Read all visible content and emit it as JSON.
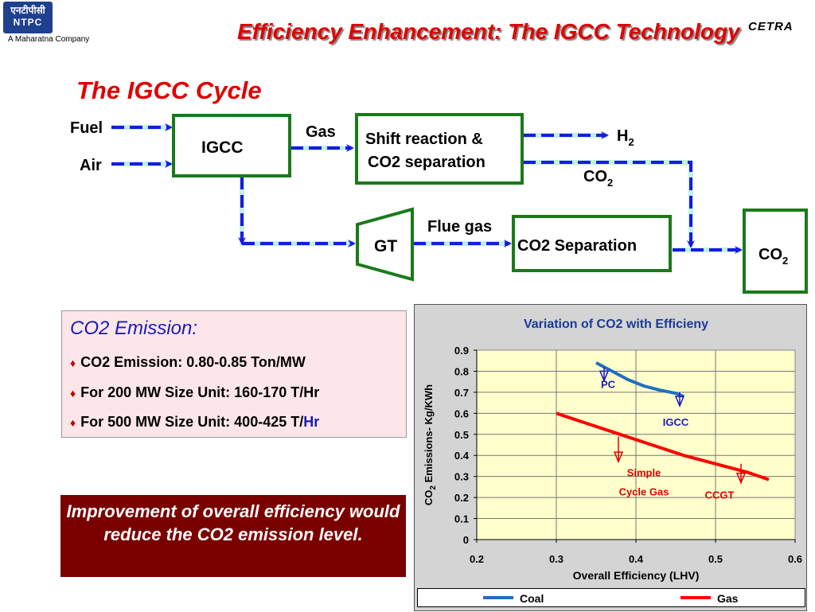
{
  "header": {
    "logo_line1": "एनटीपीसी",
    "logo_line2": "NTPC",
    "tagline": "A Maharatna Company",
    "cetra": "CETRA",
    "title": "Efficiency Enhancement: The IGCC Technology"
  },
  "subtitle": "The IGCC Cycle",
  "diagram": {
    "fuel": "Fuel",
    "air": "Air",
    "igcc": "IGCC",
    "gas": "Gas",
    "shift_line1": "Shift reaction &",
    "shift_line2": "CO2 separation",
    "h2": "H",
    "h2_sub": "2",
    "co2_mid": "CO",
    "co2_mid_sub": "2",
    "flue_gas": "Flue gas",
    "gt": "GT",
    "co2_separation": "CO2 Separation",
    "co2_final": "CO",
    "co2_final_sub": "2",
    "colors": {
      "box": "#1a7a1a",
      "arrow": "#1a1ae0",
      "arrow_bg": "#bfeff0"
    }
  },
  "emission": {
    "heading": "CO2  Emission:",
    "bullet1": "CO2 Emission: 0.80-0.85 Ton/MW",
    "bullet2": "For 200 MW Size Unit: 160-170 T/Hr",
    "bullet3_main": "For 500 MW Size Unit: 400-425 T/",
    "bullet3_tail": "Hr"
  },
  "improvement": {
    "text": "Improvement of overall efficiency would reduce the CO2 emission level."
  },
  "chart_data": {
    "type": "line",
    "title": "Variation of CO2 with Efficieny",
    "xlabel": "Overall Efficiency (LHV)",
    "ylabel_main": "CO",
    "ylabel_sub": "2",
    "ylabel_rest": " Emissions- Kg/KWh",
    "xlim": [
      0.2,
      0.6
    ],
    "ylim": [
      0,
      0.9
    ],
    "xticks": [
      "0.2",
      "0.3",
      "0.4",
      "0.5",
      "0.6"
    ],
    "yticks": [
      "0",
      "0.1",
      "0.2",
      "0.3",
      "0.4",
      "0.5",
      "0.6",
      "0.7",
      "0.8",
      "0.9"
    ],
    "grid": true,
    "legend_position": "bottom",
    "series": [
      {
        "name": "Coal",
        "color": "#1f6fbf",
        "x": [
          0.35,
          0.37,
          0.39,
          0.41,
          0.43,
          0.45,
          0.46
        ],
        "y": [
          0.84,
          0.8,
          0.76,
          0.73,
          0.71,
          0.695,
          0.68
        ]
      },
      {
        "name": "Gas",
        "color": "#ff0000",
        "x": [
          0.3,
          0.34,
          0.38,
          0.42,
          0.46,
          0.5,
          0.54,
          0.567
        ],
        "y": [
          0.6,
          0.55,
          0.5,
          0.45,
          0.4,
          0.36,
          0.32,
          0.285
        ]
      }
    ],
    "annotations": [
      {
        "text": "PC",
        "color": "#1a1ab8",
        "x": 0.365,
        "y": 0.72,
        "ax": 0.36,
        "ay": 0.82,
        "ax2": 0.36,
        "ay2": 0.755,
        "arrowColor": "#1a1ab8"
      },
      {
        "text": "IGCC",
        "color": "#1a1ab8",
        "x": 0.45,
        "y": 0.54,
        "ax": 0.455,
        "ay": 0.7,
        "ax2": 0.455,
        "ay2": 0.635,
        "arrowColor": "#1a1ab8"
      },
      {
        "text": "Simple",
        "color": "#e00000",
        "x": 0.41,
        "y": 0.3,
        "ax": 0.378,
        "ay": 0.49,
        "ax2": 0.378,
        "ay2": 0.37,
        "arrowColor": "#e00000"
      },
      {
        "text": "Cycle Gas",
        "color": "#e00000",
        "x": 0.41,
        "y": 0.21
      },
      {
        "text": "CCGT",
        "color": "#e00000",
        "x": 0.505,
        "y": 0.195,
        "ax": 0.532,
        "ay": 0.36,
        "ax2": 0.532,
        "ay2": 0.27,
        "arrowColor": "#e00000"
      }
    ]
  }
}
